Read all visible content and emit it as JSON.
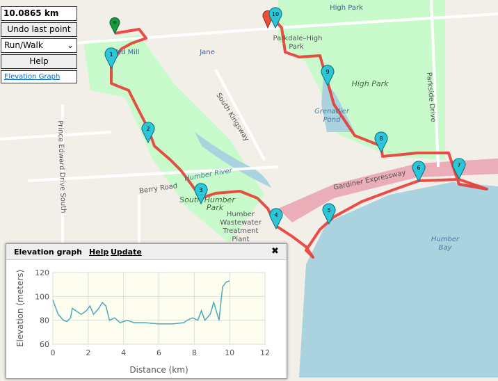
{
  "controls": {
    "distance": "10.0865 km",
    "undo": "Undo last point",
    "mode": "Run/Walk",
    "help": "Help",
    "elevation_link": "Elevation Graph"
  },
  "map_labels": [
    "High Park",
    "Parkdale–High",
    "Park",
    "Jane",
    "Old Mill",
    "High Park",
    "Grenadier",
    "Pond",
    "South Kingsway",
    "Humber River",
    "Berry Road",
    "Prince Edward Drive South",
    "South Humber",
    "Park",
    "Humber",
    "Wastewater",
    "Treatment",
    "Plant",
    "Gardiner Expressway",
    "Humber",
    "Bay",
    "Parkside Drive"
  ],
  "markers": [
    "1",
    "2",
    "3",
    "4",
    "5",
    "6",
    "7",
    "8",
    "9",
    "10"
  ],
  "panel": {
    "title": "Elevation graph",
    "help": "Help",
    "update": "Update",
    "close": "✖"
  },
  "chart_data": {
    "type": "line",
    "x_label": "Distance (km)",
    "y_label": "Elevation (meters)",
    "x": [
      0,
      0.3,
      0.6,
      0.8,
      1.0,
      1.1,
      1.3,
      1.6,
      1.9,
      2.1,
      2.3,
      2.6,
      2.8,
      3.0,
      3.2,
      3.5,
      3.8,
      4.2,
      4.6,
      5.2,
      6.0,
      6.8,
      7.4,
      7.6,
      7.9,
      8.2,
      8.4,
      8.6,
      8.9,
      9.1,
      9.4,
      9.6,
      9.8,
      10.0
    ],
    "values": [
      97,
      85,
      80,
      79,
      82,
      90,
      88,
      85,
      88,
      92,
      85,
      90,
      95,
      92,
      80,
      82,
      78,
      80,
      78,
      78,
      77,
      77,
      78,
      80,
      82,
      80,
      88,
      80,
      85,
      95,
      80,
      108,
      112,
      113
    ],
    "color": "#4aaab8",
    "xlim": [
      0,
      12
    ],
    "ylim": [
      60,
      120
    ],
    "xticks": [
      0,
      2,
      4,
      6,
      8,
      10,
      12
    ],
    "yticks": [
      60,
      80,
      100,
      120
    ],
    "grid": true
  }
}
